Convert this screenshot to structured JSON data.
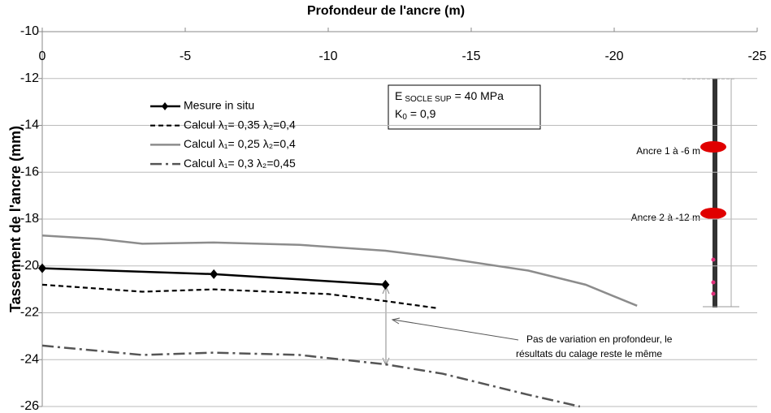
{
  "chart_data": {
    "type": "line",
    "title": "Profondeur de l'ancre (m)",
    "y_label": "Tassement de l'ancre (mm)",
    "xlim": [
      0,
      -25
    ],
    "xticks": [
      0,
      -5,
      -10,
      -15,
      -20,
      -25
    ],
    "ylim": [
      -10,
      -26
    ],
    "yticks": [
      -10,
      -12,
      -14,
      -16,
      -18,
      -20,
      -22,
      -24,
      -26
    ],
    "grid": true,
    "series": [
      {
        "name": "Mesure in situ",
        "color": "#000000",
        "style": "solid",
        "marker": "diamond",
        "x": [
          0,
          -6,
          -12
        ],
        "values": [
          -20.1,
          -20.35,
          -20.8
        ]
      },
      {
        "name": "Calcul λ₁= 0,35 λ₂=0,4",
        "color": "#000000",
        "style": "dashed",
        "x": [
          0,
          -3.5,
          -6,
          -10,
          -12,
          -13.8
        ],
        "values": [
          -20.8,
          -21.1,
          -21.0,
          -21.2,
          -21.5,
          -21.8
        ]
      },
      {
        "name": "Calcul λ₁= 0,25 λ₂=0,4",
        "color": "#8c8c8c",
        "style": "solid",
        "x": [
          0,
          -2,
          -3.5,
          -6,
          -9,
          -12,
          -14,
          -17,
          -19,
          -20,
          -20.8
        ],
        "values": [
          -18.7,
          -18.85,
          -19.05,
          -19.0,
          -19.1,
          -19.35,
          -19.65,
          -20.2,
          -20.8,
          -21.3,
          -21.7
        ]
      },
      {
        "name": "Calcul λ₁= 0,3 λ₂=0,45",
        "color": "#555555",
        "style": "dashdot",
        "x": [
          0,
          -3.5,
          -6,
          -9,
          -12,
          -14,
          -17,
          -18.8
        ],
        "values": [
          -23.4,
          -23.8,
          -23.7,
          -23.8,
          -24.2,
          -24.6,
          -25.5,
          -26.0
        ]
      }
    ],
    "info_box": {
      "e_label": "E",
      "e_sub": "SOCLE SUP",
      "e_value": "= 40 MPa",
      "k_label": "K",
      "k_sub": "0",
      "k_value": "= 0,9"
    },
    "anchor_labels": [
      "Ancre 1 à -6 m",
      "Ancre 2 à -12 m"
    ],
    "note": [
      "Pas de variation en profondeur, le",
      "résultats du calage reste le même"
    ]
  }
}
